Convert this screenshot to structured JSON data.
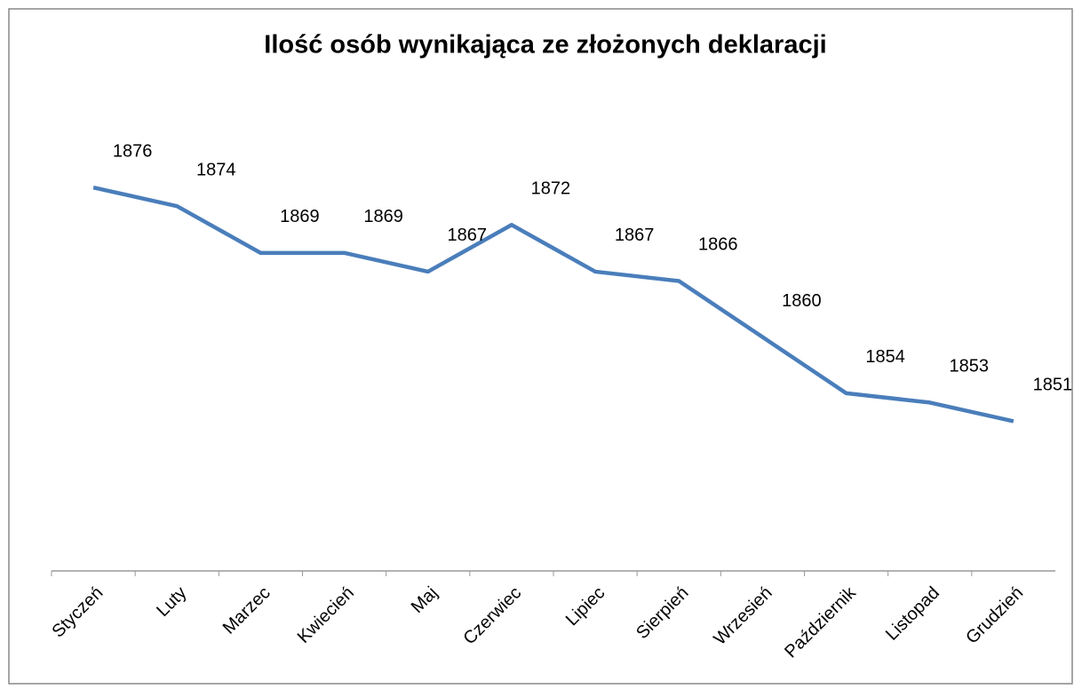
{
  "chart_data": {
    "type": "line",
    "title": "Ilość osób wynikająca ze złożonych deklaracji",
    "categories": [
      "Styczeń",
      "Luty",
      "Marzec",
      "Kwiecień",
      "Maj",
      "Czerwiec",
      "Lipiec",
      "Sierpień",
      "Wrzesień",
      "Październik",
      "Listopad",
      "Grudzień"
    ],
    "values": [
      1876,
      1874,
      1869,
      1869,
      1867,
      1872,
      1867,
      1866,
      1860,
      1854,
      1853,
      1851
    ],
    "color": "#4a7ebb",
    "ylim": [
      1835,
      1880
    ]
  }
}
